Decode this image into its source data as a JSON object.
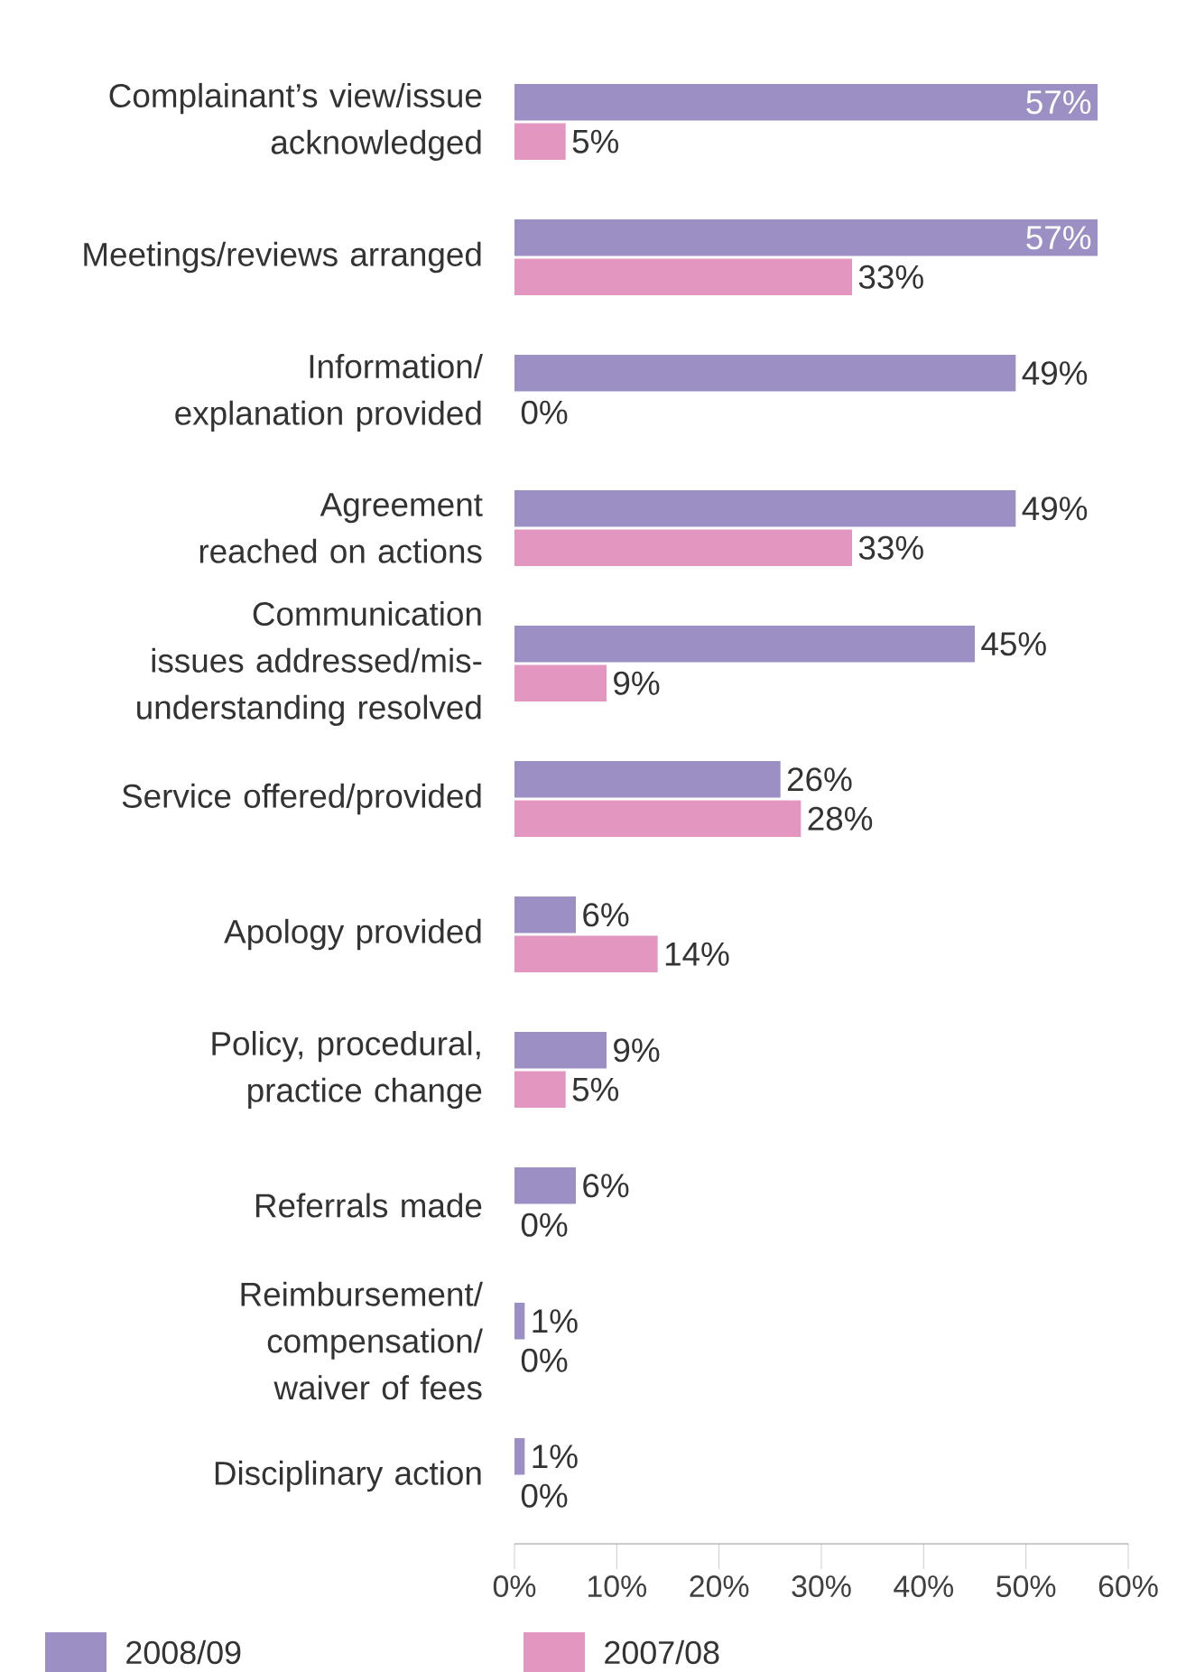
{
  "chart_data": {
    "type": "bar",
    "orientation": "horizontal",
    "categories": [
      "Complainant’s view/issue acknowledged",
      "Meetings/reviews arranged",
      "Information/ explanation provided",
      "Agreement reached on actions",
      "Communication issues addressed/mis-understanding resolved",
      "Service offered/provided",
      "Apology provided",
      "Policy, procedural, practice change",
      "Referrals made",
      "Reimbursement/ compensation/ waiver of fees",
      "Disciplinary action"
    ],
    "series": [
      {
        "name": "2008/09",
        "color": "#9b8fc4",
        "values": [
          57,
          57,
          49,
          49,
          45,
          26,
          6,
          9,
          6,
          1,
          1
        ],
        "value_labels": [
          "57%",
          "57%",
          "49%",
          "49%",
          "45%",
          "26%",
          "6%",
          "9%",
          "6%",
          "1%",
          "1%"
        ]
      },
      {
        "name": "2007/08",
        "color": "#e396c0",
        "values": [
          5,
          33,
          0,
          33,
          9,
          28,
          14,
          5,
          0,
          0,
          0
        ],
        "value_labels": [
          "5%",
          "33%",
          "0%",
          "33%",
          "9%",
          "28%",
          "14%",
          "5%",
          "0%",
          "0%",
          "0%"
        ]
      }
    ],
    "xlim": [
      0,
      60
    ],
    "xticks": [
      {
        "value": 0,
        "label": "0%"
      },
      {
        "value": 10,
        "label": "10%"
      },
      {
        "value": 20,
        "label": "20%"
      },
      {
        "value": 30,
        "label": "30%"
      },
      {
        "value": 40,
        "label": "40%"
      },
      {
        "value": 50,
        "label": "50%"
      },
      {
        "value": 60,
        "label": "60%"
      }
    ],
    "legend": "bottom",
    "grid": false
  }
}
